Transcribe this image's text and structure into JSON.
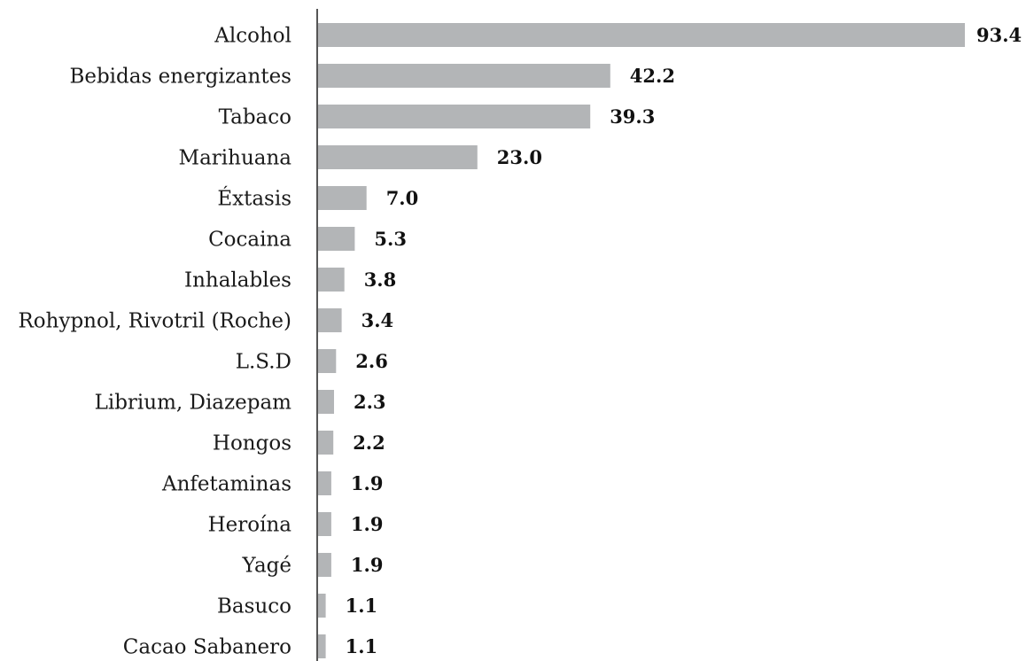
{
  "chart_data": {
    "type": "bar",
    "orientation": "horizontal",
    "title": "",
    "xlabel": "",
    "ylabel": "",
    "xlim": [
      0,
      93.4
    ],
    "grid": false,
    "bar_color": "#b3b5b7",
    "categories": [
      "Alcohol",
      "Bebidas energizantes",
      "Tabaco",
      "Marihuana",
      "Éxtasis",
      "Cocaina",
      "Inhalables",
      "Rohypnol, Rivotril (Roche)",
      "L.S.D",
      "Librium, Diazepam",
      "Hongos",
      "Anfetaminas",
      "Heroína",
      "Yagé",
      "Basuco",
      "Cacao Sabanero"
    ],
    "values": [
      93.4,
      42.2,
      39.3,
      23.0,
      7.0,
      5.3,
      3.8,
      3.4,
      2.6,
      2.3,
      2.2,
      1.9,
      1.9,
      1.9,
      1.1,
      1.1
    ],
    "value_labels": [
      "93.4",
      "42.2",
      "39.3",
      "23.0",
      "7.0",
      "5.3",
      "3.8",
      "3.4",
      "2.6",
      "2.3",
      "2.2",
      "1.9",
      "1.9",
      "1.9",
      "1.1",
      "1.1"
    ]
  }
}
